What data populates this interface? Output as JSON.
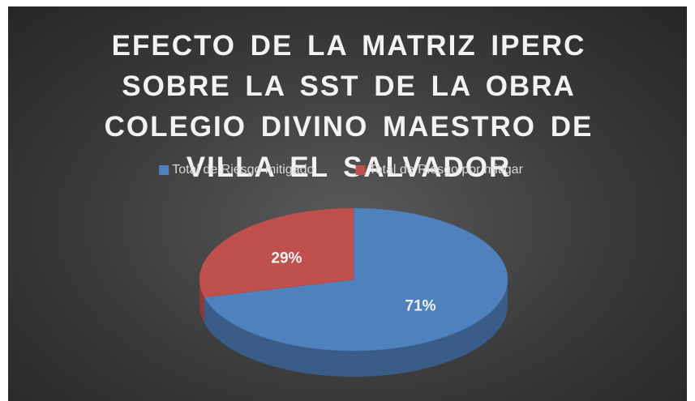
{
  "chart_data": {
    "type": "pie",
    "title": "EFECTO DE LA MATRIZ IPERC SOBRE LA SST DE LA OBRA COLEGIO DIVINO MAESTRO DE VILLA EL SALVADOR",
    "categories": [
      "Total de Riesgo mitigado",
      "Total de Riesgo por mitigar"
    ],
    "values": [
      71,
      29
    ],
    "value_labels": [
      "71%",
      "29%"
    ],
    "colors": [
      "#4f81bd",
      "#c0504d"
    ],
    "legend": "top"
  }
}
